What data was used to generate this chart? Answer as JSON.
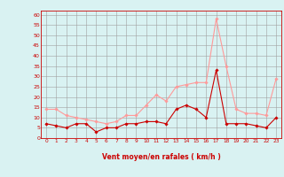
{
  "x": [
    0,
    1,
    2,
    3,
    4,
    5,
    6,
    7,
    8,
    9,
    10,
    11,
    12,
    13,
    14,
    15,
    16,
    17,
    18,
    19,
    20,
    21,
    22,
    23
  ],
  "wind_avg": [
    7,
    6,
    5,
    7,
    7,
    3,
    5,
    5,
    7,
    7,
    8,
    8,
    7,
    14,
    16,
    14,
    10,
    33,
    7,
    7,
    7,
    6,
    5,
    10
  ],
  "wind_gust": [
    14,
    14,
    11,
    10,
    9,
    8,
    7,
    8,
    11,
    11,
    16,
    21,
    18,
    25,
    26,
    27,
    27,
    58,
    35,
    14,
    12,
    12,
    11,
    29
  ],
  "bg_color": "#d9f2f2",
  "grid_color": "#a0a0a0",
  "line_avg_color": "#cc0000",
  "line_gust_color": "#ff9999",
  "marker_avg_color": "#cc0000",
  "marker_gust_color": "#ff9999",
  "xlabel": "Vent moyen/en rafales ( km/h )",
  "ylabel_ticks": [
    0,
    5,
    10,
    15,
    20,
    25,
    30,
    35,
    40,
    45,
    50,
    55,
    60
  ],
  "ylim": [
    0,
    62
  ],
  "xlim": [
    -0.5,
    23.5
  ],
  "xlabel_color": "#cc0000",
  "tick_color": "#cc0000",
  "axis_color": "#cc0000"
}
